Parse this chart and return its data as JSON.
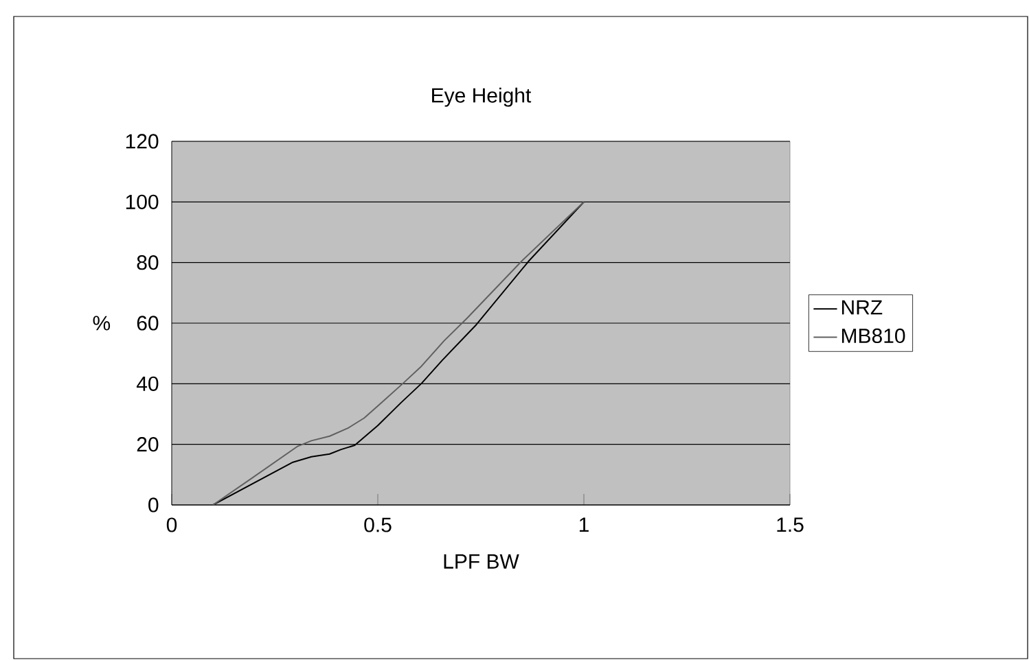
{
  "chart_data": {
    "type": "line",
    "title": "Eye Height",
    "xlabel": "LPF BW",
    "ylabel": "%",
    "xlim": [
      0,
      1.5
    ],
    "xticks": [
      0,
      0.5,
      1,
      1.5
    ],
    "ylim": [
      0,
      120
    ],
    "yticks": [
      0,
      20,
      40,
      60,
      80,
      100,
      120
    ],
    "grid": "y",
    "legend": "right",
    "series": [
      {
        "name": "NRZ",
        "color": "#000000",
        "x": [
          0.1,
          0.294,
          0.339,
          0.383,
          0.411,
          0.444,
          0.5,
          0.556,
          0.606,
          0.656,
          0.739,
          0.867,
          1.0
        ],
        "values": [
          0,
          14.1,
          15.9,
          16.8,
          18.3,
          19.7,
          26.2,
          33.7,
          40.1,
          47.7,
          59.5,
          80.6,
          100
        ]
      },
      {
        "name": "MB810",
        "color": "#606060",
        "x": [
          0.1,
          0.194,
          0.306,
          0.339,
          0.383,
          0.428,
          0.467,
          0.506,
          0.561,
          0.606,
          0.661,
          0.717,
          0.85,
          1.0
        ],
        "values": [
          0,
          8.8,
          19.4,
          21.2,
          22.7,
          25.4,
          28.7,
          33.4,
          40.1,
          45.8,
          54.2,
          61.7,
          80.6,
          100
        ]
      }
    ]
  }
}
